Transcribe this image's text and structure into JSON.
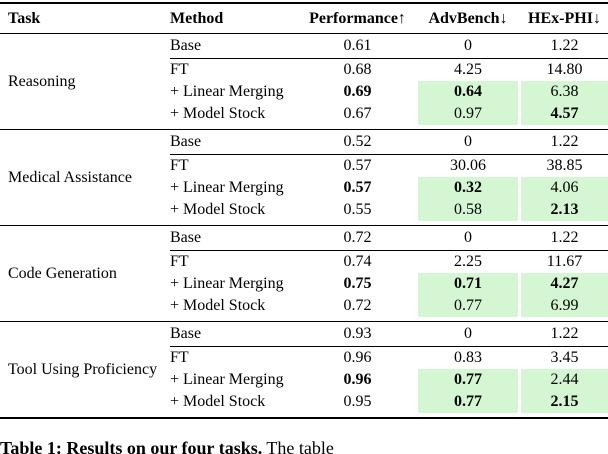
{
  "page": {
    "background": "#ffffff",
    "text_color": "#000000",
    "highlight_green": "#d5f6d3"
  },
  "table": {
    "columns": [
      {
        "key": "task",
        "label": "Task"
      },
      {
        "key": "method",
        "label": "Method"
      },
      {
        "key": "perf",
        "label": "Performance↑"
      },
      {
        "key": "adv",
        "label": "AdvBench↓"
      },
      {
        "key": "hex",
        "label": "HEx-PHI↓"
      }
    ],
    "sections": [
      {
        "task": "Reasoning",
        "rows": [
          {
            "method": "Base",
            "perf": {
              "v": "0.61"
            },
            "adv": {
              "v": "0"
            },
            "hex": {
              "v": "1.22"
            }
          },
          {
            "method": "FT",
            "perf": {
              "v": "0.68"
            },
            "adv": {
              "v": "4.25"
            },
            "hex": {
              "v": "14.80"
            }
          },
          {
            "method": "+ Linear Merging",
            "perf": {
              "v": "0.69",
              "bold": true
            },
            "adv": {
              "v": "0.64",
              "bold": true,
              "green": true
            },
            "hex": {
              "v": "6.38",
              "green": true
            }
          },
          {
            "method": "+ Model Stock",
            "perf": {
              "v": "0.67"
            },
            "adv": {
              "v": "0.97",
              "green": true
            },
            "hex": {
              "v": "4.57",
              "bold": true,
              "green": true
            }
          }
        ]
      },
      {
        "task": "Medical Assistance",
        "rows": [
          {
            "method": "Base",
            "perf": {
              "v": "0.52"
            },
            "adv": {
              "v": "0"
            },
            "hex": {
              "v": "1.22"
            }
          },
          {
            "method": "FT",
            "perf": {
              "v": "0.57"
            },
            "adv": {
              "v": "30.06"
            },
            "hex": {
              "v": "38.85"
            }
          },
          {
            "method": "+ Linear Merging",
            "perf": {
              "v": "0.57",
              "bold": true
            },
            "adv": {
              "v": "0.32",
              "bold": true,
              "green": true
            },
            "hex": {
              "v": "4.06",
              "green": true
            }
          },
          {
            "method": "+ Model Stock",
            "perf": {
              "v": "0.55"
            },
            "adv": {
              "v": "0.58",
              "green": true
            },
            "hex": {
              "v": "2.13",
              "bold": true,
              "green": true
            }
          }
        ]
      },
      {
        "task": "Code Generation",
        "rows": [
          {
            "method": "Base",
            "perf": {
              "v": "0.72"
            },
            "adv": {
              "v": "0"
            },
            "hex": {
              "v": "1.22"
            }
          },
          {
            "method": "FT",
            "perf": {
              "v": "0.74"
            },
            "adv": {
              "v": "2.25"
            },
            "hex": {
              "v": "11.67"
            }
          },
          {
            "method": "+ Linear Merging",
            "perf": {
              "v": "0.75",
              "bold": true
            },
            "adv": {
              "v": "0.71",
              "bold": true,
              "green": true
            },
            "hex": {
              "v": "4.27",
              "bold": true,
              "green": true
            }
          },
          {
            "method": "+ Model Stock",
            "perf": {
              "v": "0.72"
            },
            "adv": {
              "v": "0.77",
              "green": true
            },
            "hex": {
              "v": "6.99",
              "green": true
            }
          }
        ]
      },
      {
        "task": "Tool Using Proficiency",
        "rows": [
          {
            "method": "Base",
            "perf": {
              "v": "0.93"
            },
            "adv": {
              "v": "0"
            },
            "hex": {
              "v": "1.22"
            }
          },
          {
            "method": "FT",
            "perf": {
              "v": "0.96"
            },
            "adv": {
              "v": "0.83"
            },
            "hex": {
              "v": "3.45"
            }
          },
          {
            "method": "+ Linear Merging",
            "perf": {
              "v": "0.96",
              "bold": true
            },
            "adv": {
              "v": "0.77",
              "bold": true,
              "green": true
            },
            "hex": {
              "v": "2.44",
              "green": true
            }
          },
          {
            "method": "+ Model Stock",
            "perf": {
              "v": "0.95"
            },
            "adv": {
              "v": "0.77",
              "bold": true,
              "green": true
            },
            "hex": {
              "v": "2.15",
              "bold": true,
              "green": true
            }
          }
        ]
      }
    ]
  },
  "caption": {
    "bold": "Table 1: Results on our four tasks.",
    "rest": " The table"
  }
}
